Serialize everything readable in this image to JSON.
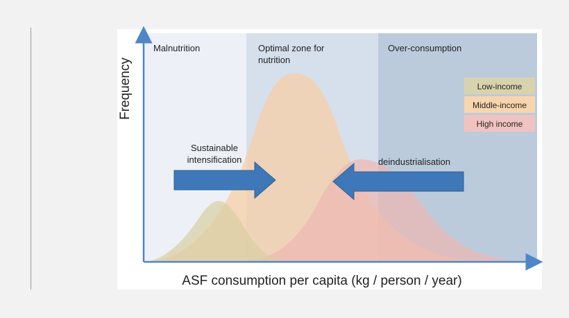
{
  "diagram": {
    "axes": {
      "x_label": "ASF consumption per capita (kg / person / year)",
      "y_label": "Frequency"
    },
    "zones": [
      {
        "name": "malnutrition",
        "lines": [
          "Malnutrition"
        ],
        "fill": "#edf0f6"
      },
      {
        "name": "optimal",
        "lines": [
          "Optimal zone for",
          "nutrition"
        ],
        "fill": "#d6dfec"
      },
      {
        "name": "over-consumption",
        "lines": [
          "Over-consumption"
        ],
        "fill": "#bccbdc"
      }
    ],
    "legend": [
      {
        "label": "Low-income",
        "color": "#d9d3ad"
      },
      {
        "label": "Middle-income",
        "color": "#f9d5ae"
      },
      {
        "label": "High income",
        "color": "#f1c3c0"
      }
    ],
    "arrows": [
      {
        "name": "sustainable-intensification",
        "lines": [
          "Sustainable",
          "intensification"
        ],
        "direction": "right"
      },
      {
        "name": "deindustrialisation",
        "lines": [
          "deindustrialisation"
        ],
        "direction": "left"
      }
    ],
    "colors": {
      "axis": "#4f86c6",
      "arrow": "#3e78b8",
      "low_curve": "#d9cfa2",
      "middle_curve": "#f8cfa3",
      "high_curve": "#eeb6b2"
    }
  }
}
